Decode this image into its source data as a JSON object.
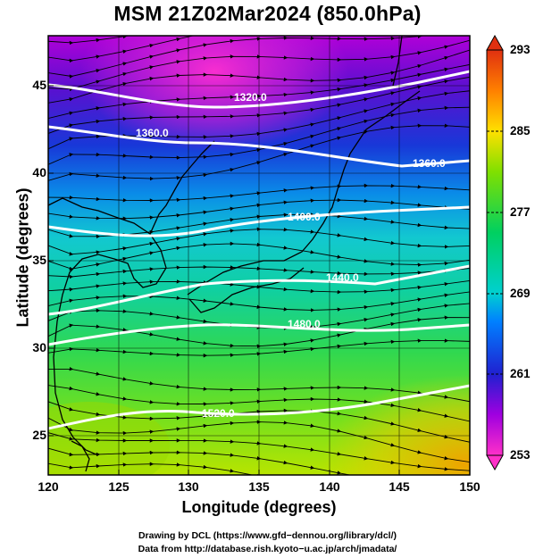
{
  "title": "MSM 21Z02Mar2024 (850.0hPa)",
  "xaxis": {
    "label": "Longitude (degrees)",
    "range": [
      120,
      150
    ],
    "ticks": [
      "120",
      "125",
      "130",
      "135",
      "140",
      "145",
      "150"
    ]
  },
  "yaxis": {
    "label": "Latitude  (degrees)",
    "range": [
      22.5,
      48
    ],
    "ticks": [
      "25",
      "30",
      "35",
      "40",
      "45"
    ]
  },
  "colorbar": {
    "range": [
      253,
      293
    ],
    "ticks": [
      "253",
      "261",
      "269",
      "277",
      "285",
      "293"
    ]
  },
  "contours": [
    {
      "label": "1320.0",
      "color": "#ffffff"
    },
    {
      "label": "1360.0",
      "color": "#ffffff"
    },
    {
      "label": "1360.0",
      "color": "#ffffff"
    },
    {
      "label": "1400.0",
      "color": "#ffffff"
    },
    {
      "label": "1440.0",
      "color": "#ffffff"
    },
    {
      "label": "1480.0",
      "color": "#ffffff"
    },
    {
      "label": "1520.0",
      "color": "#ffffff"
    }
  ],
  "credits": [
    "Drawing by DCL (https://www.gfd−dennou.org/library/dcl/)",
    "Data from http://database.rish.kyoto−u.ac.jp/arch/jmadata/"
  ],
  "colors": {
    "cold": "#c800c8",
    "mid": "#00c8c8",
    "warm": "#e69600"
  }
}
